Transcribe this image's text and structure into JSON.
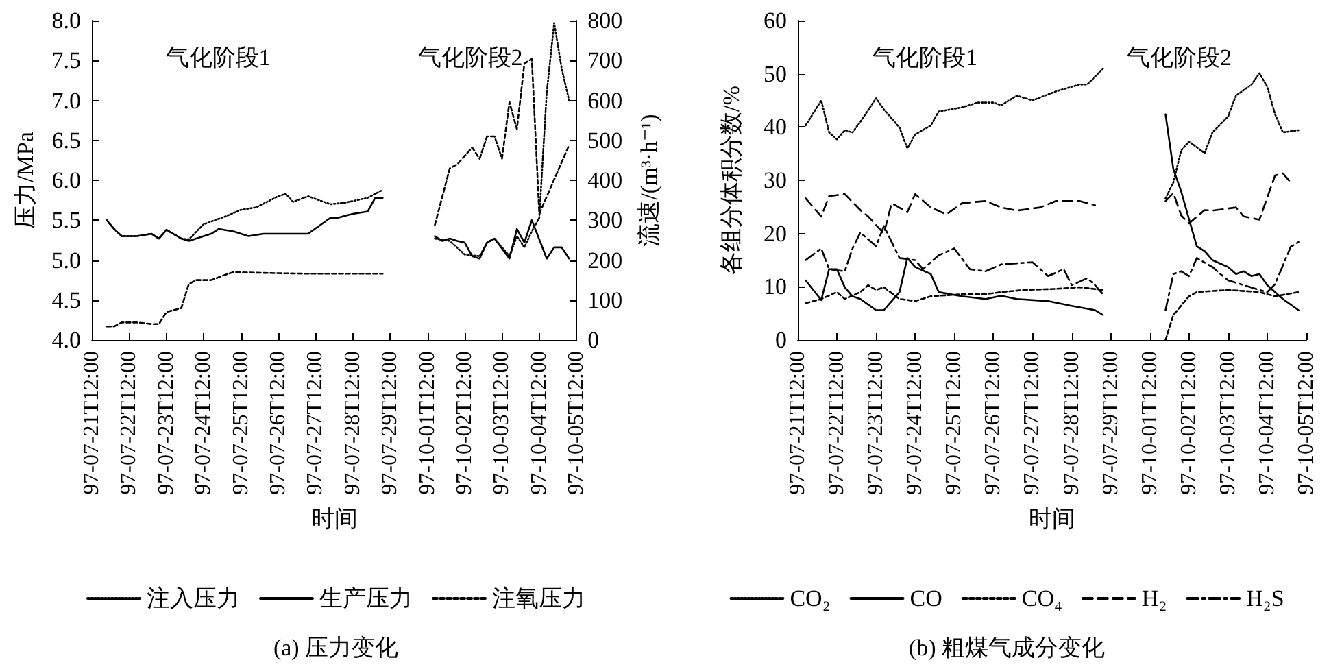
{
  "chart_data": [
    {
      "type": "line",
      "title": "(a) 压力变化",
      "xlabel": "时间",
      "ylabel": "压力/MPa",
      "y2label": "流速/(m³·h⁻¹)",
      "categories": [
        "97-07-21T12:00",
        null,
        null,
        null,
        null,
        "97-07-22T12:00",
        null,
        null,
        null,
        null,
        "97-07-23T12:00",
        null,
        null,
        null,
        null,
        "97-07-24T12:00",
        null,
        null,
        null,
        null,
        "97-07-25T12:00",
        null,
        null,
        null,
        null,
        "97-07-26T12:00",
        null,
        null,
        null,
        null,
        "97-07-27T12:00",
        null,
        null,
        null,
        null,
        "97-07-28T12:00",
        null,
        null,
        null,
        null,
        "97-07-29T12:00",
        null,
        null,
        null,
        null,
        "97-10-01T12:00",
        null,
        null,
        null,
        null,
        "97-10-02T12:00",
        null,
        null,
        null,
        null,
        "97-10-03T12:00",
        null,
        null,
        null,
        null,
        "97-10-04T12:00",
        null,
        null,
        null,
        null,
        "97-10-05T12:00"
      ],
      "ylim": [
        4,
        8
      ],
      "yticks": [
        {
          "value": 4,
          "label": "4.0"
        },
        {
          "value": 4.5,
          "label": "4.5"
        },
        {
          "value": 5,
          "label": "5.0"
        },
        {
          "value": 5.5,
          "label": "5.5"
        },
        {
          "value": 6,
          "label": "6.0"
        },
        {
          "value": 6.5,
          "label": "6.5"
        },
        {
          "value": 7,
          "label": "7.0"
        },
        {
          "value": 7.5,
          "label": "7.5"
        },
        {
          "value": 8,
          "label": "8.0"
        }
      ],
      "y2lim": [
        0,
        800
      ],
      "y2ticks": [
        0,
        100,
        200,
        300,
        400,
        500,
        600,
        700,
        800
      ],
      "grid": false,
      "legend": "bottom",
      "marker": "none",
      "annotations": [
        "气化阶段1",
        "气化阶段2"
      ],
      "series": [
        {
          "name": "注入压力",
          "color": "#000000",
          "line_style": "dotted",
          "values": [
            null,
            null,
            5.5,
            5.39,
            5.3,
            null,
            5.3,
            null,
            5.33,
            5.27,
            5.38,
            null,
            5.27,
            5.26,
            null,
            5.45,
            null,
            null,
            5.55,
            null,
            5.63,
            null,
            5.66,
            null,
            null,
            5.8,
            5.83,
            5.73,
            null,
            5.8,
            null,
            null,
            5.7,
            null,
            5.72,
            null,
            null,
            5.78,
            null,
            5.88,
            null,
            null,
            null,
            null,
            null,
            null,
            null,
            null,
            null,
            null,
            null,
            null,
            null,
            null,
            null,
            null,
            null,
            null,
            null,
            null,
            null,
            null,
            null,
            null,
            null,
            null
          ]
        },
        {
          "color": "#000000",
          "line_style": "dotted",
          "values": [
            null,
            null,
            null,
            null,
            null,
            null,
            null,
            null,
            null,
            null,
            null,
            null,
            null,
            null,
            null,
            null,
            null,
            null,
            null,
            null,
            null,
            null,
            null,
            null,
            null,
            null,
            null,
            null,
            null,
            null,
            null,
            null,
            null,
            null,
            null,
            null,
            null,
            null,
            null,
            null,
            null,
            null,
            null,
            null,
            null,
            null,
            5.27,
            null,
            5.24,
            null,
            5.07,
            null,
            5.05,
            5.22,
            5.27,
            null,
            5.05,
            5.3,
            5.16,
            5.36,
            5.53,
            7.1,
            7.97,
            7.4,
            7.0,
            null
          ]
        },
        {
          "name": "生产压力",
          "color": "#000000",
          "line_style": "solid",
          "values": [
            null,
            null,
            5.5,
            5.39,
            5.3,
            null,
            5.3,
            null,
            5.33,
            5.27,
            5.38,
            null,
            5.27,
            5.24,
            null,
            null,
            5.33,
            5.39,
            null,
            5.36,
            null,
            5.3,
            null,
            5.33,
            null,
            null,
            5.33,
            null,
            null,
            5.33,
            null,
            null,
            5.53,
            5.53,
            null,
            5.58,
            null,
            5.61,
            5.78,
            5.78,
            null,
            null,
            null,
            null,
            null,
            null,
            null,
            null,
            null,
            null,
            null,
            null,
            null,
            null,
            null,
            null,
            null,
            null,
            null,
            null,
            null,
            null,
            null,
            null,
            null,
            null
          ]
        },
        {
          "color": "#000000",
          "line_style": "solid",
          "values": [
            null,
            null,
            null,
            null,
            null,
            null,
            null,
            null,
            null,
            null,
            null,
            null,
            null,
            null,
            null,
            null,
            null,
            null,
            null,
            null,
            null,
            null,
            null,
            null,
            null,
            null,
            null,
            null,
            null,
            null,
            null,
            null,
            null,
            null,
            null,
            null,
            null,
            null,
            null,
            null,
            null,
            null,
            null,
            null,
            null,
            null,
            5.3,
            5.24,
            5.27,
            5.24,
            5.22,
            5.05,
            5.02,
            5.22,
            5.27,
            null,
            5.02,
            5.39,
            5.22,
            5.5,
            null,
            5.02,
            5.16,
            5.16,
            5.02,
            null
          ]
        },
        {
          "name": "注氧压力",
          "color": "#000000",
          "line_style": "dashed",
          "values": [
            null,
            null,
            4.17,
            4.17,
            4.22,
            null,
            4.22,
            null,
            4.2,
            4.2,
            4.35,
            null,
            4.4,
            4.7,
            4.75,
            null,
            4.75,
            null,
            4.82,
            4.85,
            null,
            null,
            null,
            4.84,
            null,
            null,
            null,
            null,
            null,
            4.83,
            null,
            null,
            null,
            null,
            null,
            null,
            null,
            null,
            null,
            4.83,
            null,
            null,
            null,
            null,
            null,
            null,
            null,
            null,
            null,
            null,
            null,
            null,
            null,
            null,
            null,
            null,
            null,
            null,
            null,
            null,
            null,
            null,
            null,
            null,
            null,
            null
          ]
        },
        {
          "color": "#000000",
          "line_style": "dashed",
          "values": [
            null,
            null,
            null,
            null,
            null,
            null,
            null,
            null,
            null,
            null,
            null,
            null,
            null,
            null,
            null,
            null,
            null,
            null,
            null,
            null,
            null,
            null,
            null,
            null,
            null,
            null,
            null,
            null,
            null,
            null,
            null,
            null,
            null,
            null,
            null,
            null,
            null,
            null,
            null,
            null,
            null,
            null,
            null,
            null,
            null,
            null,
            5.44,
            null,
            6.15,
            6.2,
            null,
            6.41,
            6.27,
            6.55,
            6.55,
            6.27,
            6.98,
            6.64,
            7.46,
            7.52,
            5.58,
            null,
            null,
            null,
            6.44,
            null
          ]
        }
      ]
    },
    {
      "type": "line",
      "title": "(b) 粗煤气成分变化",
      "xlabel": "时间",
      "ylabel": "各组分体积分数/%",
      "categories": [
        "97-07-21T12:00",
        null,
        null,
        null,
        null,
        "97-07-22T12:00",
        null,
        null,
        null,
        null,
        "97-07-23T12:00",
        null,
        null,
        null,
        null,
        "97-07-24T12:00",
        null,
        null,
        null,
        null,
        "97-07-25T12:00",
        null,
        null,
        null,
        null,
        "97-07-26T12:00",
        null,
        null,
        null,
        null,
        "97-07-27T12:00",
        null,
        null,
        null,
        null,
        "97-07-28T12:00",
        null,
        null,
        null,
        null,
        "97-07-29T12:00",
        null,
        null,
        null,
        null,
        "97-10-01T12:00",
        null,
        null,
        null,
        null,
        "97-10-02T12:00",
        null,
        null,
        null,
        null,
        "97-10-03T12:00",
        null,
        null,
        null,
        null,
        "97-10-04T12:00",
        null,
        null,
        null,
        null,
        "97-10-05T12:00"
      ],
      "ylim": [
        0,
        60
      ],
      "yticks": [
        0,
        10,
        20,
        30,
        40,
        50,
        60
      ],
      "grid": false,
      "legend": "bottom",
      "marker": "none",
      "annotations": [
        "气化阶段1",
        "气化阶段2"
      ],
      "series": [
        {
          "name": "CO₂",
          "color": "#000000",
          "line_style": "dotted",
          "values": [
            null,
            40.3,
            null,
            45,
            39,
            37.7,
            39.4,
            39,
            41,
            null,
            45.4,
            43.3,
            null,
            39.9,
            36,
            38.6,
            null,
            40.3,
            42.9,
            null,
            null,
            43.7,
            null,
            44.6,
            null,
            44.6,
            44.1,
            null,
            45.9,
            null,
            45,
            null,
            null,
            46.7,
            null,
            null,
            48,
            48,
            null,
            51,
            null,
            null,
            null,
            null,
            null,
            null,
            null,
            null,
            null,
            null,
            null,
            null,
            null,
            null,
            null,
            null,
            null,
            null,
            null,
            null,
            null,
            null,
            null,
            null,
            null,
            null
          ]
        },
        {
          "color": "#000000",
          "line_style": "dotted",
          "values": [
            null,
            null,
            null,
            null,
            null,
            null,
            null,
            null,
            null,
            null,
            null,
            null,
            null,
            null,
            null,
            null,
            null,
            null,
            null,
            null,
            null,
            null,
            null,
            null,
            null,
            null,
            null,
            null,
            null,
            null,
            null,
            null,
            null,
            null,
            null,
            null,
            null,
            null,
            null,
            null,
            null,
            null,
            null,
            null,
            null,
            null,
            null,
            26.6,
            29.6,
            35.6,
            37.3,
            null,
            35.1,
            39,
            null,
            42,
            45.9,
            null,
            48,
            50.1,
            47.6,
            42.4,
            39,
            null,
            39.4,
            null
          ]
        },
        {
          "name": "CO",
          "color": "#000000",
          "line_style": "solid",
          "values": [
            null,
            11.2,
            null,
            7.5,
            13.3,
            13.3,
            9.9,
            8.2,
            7.7,
            null,
            5.6,
            5.6,
            null,
            9,
            15.4,
            13.7,
            null,
            12.4,
            9,
            null,
            null,
            8.2,
            null,
            null,
            7.7,
            null,
            8.3,
            null,
            7.7,
            null,
            null,
            null,
            7.3,
            null,
            null,
            6.4,
            null,
            null,
            5.6,
            4.7,
            null,
            null,
            null,
            null,
            null,
            null,
            null,
            null,
            null,
            null,
            null,
            null,
            null,
            null,
            null,
            null,
            null,
            null,
            null,
            null,
            null,
            null,
            null,
            null,
            null,
            null
          ]
        },
        {
          "color": "#000000",
          "line_style": "solid",
          "values": [
            null,
            null,
            null,
            null,
            null,
            null,
            null,
            null,
            null,
            null,
            null,
            null,
            null,
            null,
            null,
            null,
            null,
            null,
            null,
            null,
            null,
            null,
            null,
            null,
            null,
            null,
            null,
            null,
            null,
            null,
            null,
            null,
            null,
            null,
            null,
            null,
            null,
            null,
            null,
            null,
            null,
            null,
            null,
            null,
            null,
            null,
            null,
            42.4,
            32.1,
            27.9,
            22.7,
            17.6,
            16.7,
            15,
            null,
            13.7,
            12.4,
            12.9,
            12,
            12.4,
            10.3,
            null,
            7.7,
            null,
            5.6,
            null
          ]
        },
        {
          "name": "CO₄",
          "color": "#000000",
          "line_style": "dashed",
          "values": [
            null,
            6.9,
            null,
            7.7,
            null,
            9,
            7.7,
            null,
            9,
            10.3,
            9.4,
            9.9,
            null,
            7.7,
            null,
            7.3,
            null,
            8.2,
            null,
            null,
            null,
            8.6,
            null,
            null,
            8.6,
            null,
            9,
            null,
            null,
            9.4,
            null,
            null,
            null,
            9.6,
            null,
            null,
            9.9,
            null,
            null,
            9.4,
            null,
            null,
            null,
            null,
            null,
            null,
            null,
            null,
            null,
            null,
            null,
            null,
            null,
            null,
            null,
            null,
            null,
            null,
            null,
            null,
            null,
            null,
            null,
            null,
            null,
            null
          ]
        },
        {
          "color": "#000000",
          "line_style": "dashed",
          "values": [
            null,
            null,
            null,
            null,
            null,
            null,
            null,
            null,
            null,
            null,
            null,
            null,
            null,
            null,
            null,
            null,
            null,
            null,
            null,
            null,
            null,
            null,
            null,
            null,
            null,
            null,
            null,
            null,
            null,
            null,
            null,
            null,
            null,
            null,
            null,
            null,
            null,
            null,
            null,
            null,
            null,
            null,
            null,
            null,
            null,
            null,
            null,
            0,
            4.7,
            null,
            8.2,
            9,
            null,
            null,
            null,
            9.4,
            null,
            null,
            null,
            9,
            null,
            8.2,
            null,
            null,
            9,
            null
          ]
        },
        {
          "name": "H₂",
          "color": "#000000",
          "line_style": "longdashed",
          "values": [
            null,
            26.6,
            null,
            23.2,
            27,
            null,
            27.4,
            null,
            24.4,
            23.2,
            null,
            20,
            25.7,
            null,
            24,
            27.4,
            null,
            24.9,
            null,
            23.6,
            null,
            25.7,
            null,
            null,
            26.1,
            null,
            24.9,
            null,
            24.3,
            null,
            null,
            24.9,
            null,
            26.1,
            null,
            null,
            26.1,
            null,
            25.3,
            null,
            null,
            null,
            null,
            null,
            null,
            null,
            null,
            null,
            null,
            null,
            null,
            null,
            null,
            null,
            null,
            null,
            null,
            null,
            null,
            null,
            null,
            null,
            null,
            null,
            null,
            null
          ]
        },
        {
          "color": "#000000",
          "line_style": "longdashed",
          "values": [
            null,
            null,
            null,
            null,
            null,
            null,
            null,
            null,
            null,
            null,
            null,
            null,
            null,
            null,
            null,
            null,
            null,
            null,
            null,
            null,
            null,
            null,
            null,
            null,
            null,
            null,
            null,
            null,
            null,
            null,
            null,
            null,
            null,
            null,
            null,
            null,
            null,
            null,
            null,
            null,
            null,
            null,
            null,
            null,
            null,
            null,
            null,
            26.1,
            27.6,
            23.4,
            21.9,
            null,
            24.4,
            24.3,
            null,
            null,
            24.9,
            23.2,
            null,
            22.6,
            null,
            30.9,
            31.3,
            29.6,
            null,
            null
          ]
        },
        {
          "name": "H₂S",
          "color": "#000000",
          "line_style": "dashdot",
          "values": [
            null,
            15,
            null,
            17.2,
            13.3,
            null,
            12.9,
            17.2,
            20.2,
            null,
            17.6,
            21.4,
            18.4,
            15.4,
            null,
            15,
            13.3,
            null,
            15.9,
            null,
            17.2,
            null,
            13.3,
            null,
            12.9,
            null,
            14.2,
            null,
            null,
            null,
            14.6,
            null,
            12,
            null,
            13.3,
            10.3,
            null,
            11.6,
            10.3,
            8.6,
            null,
            null,
            null,
            null,
            null,
            null,
            null,
            null,
            null,
            null,
            null,
            null,
            null,
            null,
            null,
            null,
            null,
            null,
            null,
            null,
            null,
            null,
            null,
            null,
            null,
            null
          ]
        },
        {
          "color": "#000000",
          "line_style": "dashdot",
          "values": [
            null,
            null,
            null,
            null,
            null,
            null,
            null,
            null,
            null,
            null,
            null,
            null,
            null,
            null,
            null,
            null,
            null,
            null,
            null,
            null,
            null,
            null,
            null,
            null,
            null,
            null,
            null,
            null,
            null,
            null,
            null,
            null,
            null,
            null,
            null,
            null,
            null,
            null,
            null,
            null,
            null,
            null,
            null,
            null,
            null,
            null,
            null,
            5.6,
            12.4,
            12.9,
            12,
            15.4,
            null,
            13.7,
            12.4,
            11.2,
            null,
            10.3,
            null,
            9.4,
            9,
            10.5,
            14,
            17.5,
            18.4,
            null
          ]
        }
      ]
    }
  ]
}
